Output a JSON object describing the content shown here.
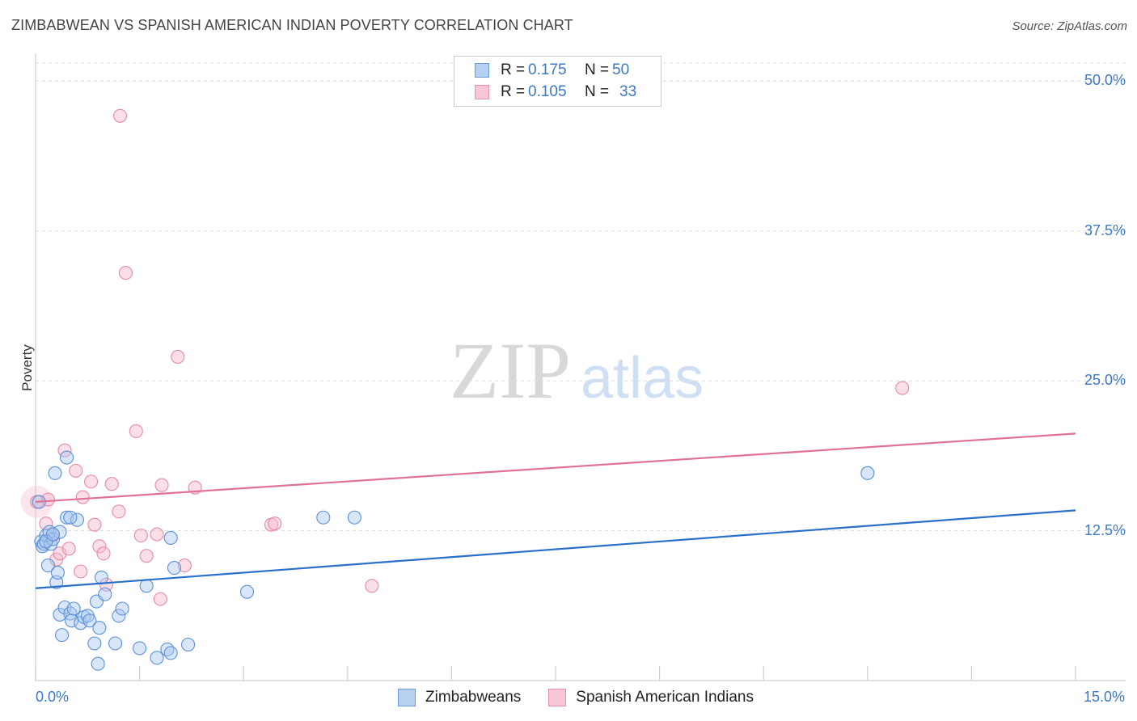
{
  "header": {
    "title": "ZIMBABWEAN VS SPANISH AMERICAN INDIAN POVERTY CORRELATION CHART",
    "source": "Source: ZipAtlas.com"
  },
  "watermark": {
    "part1": "ZIP",
    "part2": "atlas"
  },
  "colors": {
    "blue_fill": "#a9c8f0",
    "blue_stroke": "#5b8fd6",
    "blue_line": "#2a6fc9",
    "pink_fill": "#f6b8cb",
    "pink_stroke": "#e48aa8",
    "pink_line": "#e0709a",
    "accent_text": "#3b78c6"
  },
  "legend": {
    "rows": [
      {
        "r_label": "R =",
        "r_value": "0.175",
        "n_label": "N =",
        "n_value": "50"
      },
      {
        "r_label": "R =",
        "r_value": "0.105",
        "n_label": "N =",
        "n_value": "33"
      }
    ]
  },
  "bottom_legend": [
    "Zimbabweans",
    "Spanish American Indians"
  ],
  "chart_data": {
    "type": "scatter",
    "title": "ZIMBABWEAN VS SPANISH AMERICAN INDIAN POVERTY CORRELATION CHART",
    "xlabel": "",
    "ylabel": "Poverty",
    "xlim": [
      0,
      15
    ],
    "ylim": [
      0,
      51.5
    ],
    "x_tick_labels": [
      "0.0%",
      "15.0%"
    ],
    "y_ticks": [
      12.5,
      25.0,
      37.5,
      50.0
    ],
    "y_tick_labels": [
      "12.5%",
      "25.0%",
      "37.5%",
      "50.0%"
    ],
    "grid": true,
    "series": [
      {
        "name": "Zimbabweans",
        "r": 0.175,
        "n": 50,
        "trend": {
          "x": [
            0,
            15
          ],
          "y": [
            7.7,
            14.2
          ]
        },
        "points": [
          [
            0.05,
            14.9
          ],
          [
            0.08,
            11.6
          ],
          [
            0.1,
            11.2
          ],
          [
            0.12,
            11.4
          ],
          [
            0.15,
            12.1
          ],
          [
            0.18,
            9.6
          ],
          [
            0.2,
            12.4
          ],
          [
            0.22,
            11.4
          ],
          [
            0.25,
            11.8
          ],
          [
            0.28,
            17.3
          ],
          [
            0.3,
            8.2
          ],
          [
            0.32,
            9.0
          ],
          [
            0.35,
            12.4
          ],
          [
            0.35,
            5.5
          ],
          [
            0.38,
            3.8
          ],
          [
            0.42,
            6.1
          ],
          [
            0.45,
            13.6
          ],
          [
            0.45,
            18.6
          ],
          [
            0.5,
            5.6
          ],
          [
            0.52,
            5.0
          ],
          [
            0.55,
            6.0
          ],
          [
            0.6,
            13.4
          ],
          [
            0.65,
            4.8
          ],
          [
            0.7,
            5.3
          ],
          [
            0.75,
            5.4
          ],
          [
            0.78,
            5.0
          ],
          [
            0.85,
            3.1
          ],
          [
            0.88,
            6.6
          ],
          [
            0.9,
            1.4
          ],
          [
            0.92,
            4.4
          ],
          [
            0.95,
            8.6
          ],
          [
            1.0,
            7.2
          ],
          [
            1.15,
            3.1
          ],
          [
            1.2,
            5.4
          ],
          [
            1.25,
            6.0
          ],
          [
            1.5,
            2.7
          ],
          [
            1.6,
            7.9
          ],
          [
            1.75,
            1.9
          ],
          [
            1.9,
            2.6
          ],
          [
            1.95,
            2.3
          ],
          [
            1.95,
            11.9
          ],
          [
            2.0,
            9.4
          ],
          [
            2.2,
            3.0
          ],
          [
            3.05,
            7.4
          ],
          [
            4.15,
            13.6
          ],
          [
            4.6,
            13.6
          ],
          [
            12.0,
            17.3
          ],
          [
            0.15,
            11.6
          ],
          [
            0.25,
            12.2
          ],
          [
            0.5,
            13.6
          ]
        ]
      },
      {
        "name": "Spanish American Indians",
        "r": 0.105,
        "n": 33,
        "trend": {
          "x": [
            0,
            15
          ],
          "y": [
            14.9,
            20.6
          ]
        },
        "points": [
          [
            0.02,
            14.9
          ],
          [
            0.15,
            13.1
          ],
          [
            0.18,
            15.1
          ],
          [
            0.25,
            12.1
          ],
          [
            0.3,
            10.1
          ],
          [
            0.35,
            10.6
          ],
          [
            0.42,
            19.2
          ],
          [
            0.48,
            11.0
          ],
          [
            0.58,
            17.5
          ],
          [
            0.65,
            9.1
          ],
          [
            0.68,
            15.3
          ],
          [
            0.8,
            16.6
          ],
          [
            0.85,
            13.0
          ],
          [
            0.92,
            11.2
          ],
          [
            0.98,
            10.6
          ],
          [
            1.02,
            8.0
          ],
          [
            1.1,
            16.4
          ],
          [
            1.2,
            14.1
          ],
          [
            1.22,
            47.1
          ],
          [
            1.3,
            34.0
          ],
          [
            1.45,
            20.8
          ],
          [
            1.52,
            12.1
          ],
          [
            1.6,
            10.4
          ],
          [
            1.75,
            12.2
          ],
          [
            1.8,
            6.8
          ],
          [
            1.82,
            16.3
          ],
          [
            2.05,
            27.0
          ],
          [
            2.15,
            9.6
          ],
          [
            2.3,
            16.1
          ],
          [
            3.4,
            13.0
          ],
          [
            3.45,
            13.1
          ],
          [
            4.85,
            7.9
          ],
          [
            12.5,
            24.4
          ]
        ]
      }
    ]
  }
}
